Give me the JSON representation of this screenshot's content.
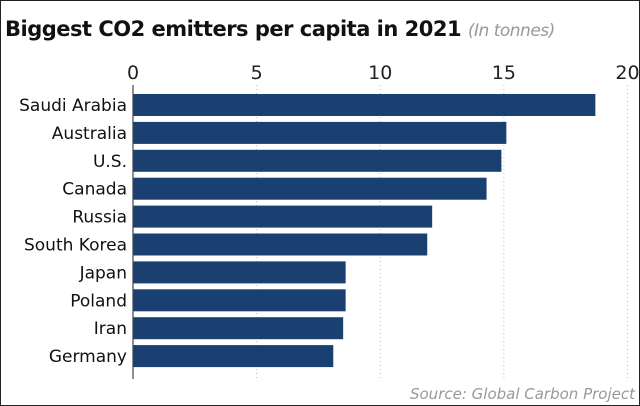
{
  "chart_data": {
    "type": "bar",
    "orientation": "horizontal",
    "title": "Biggest CO2 emitters per capita in 2021",
    "subtitle": "(In tonnes)",
    "categories": [
      "Saudi Arabia",
      "Australia",
      "U.S.",
      "Canada",
      "Russia",
      "South Korea",
      "Japan",
      "Poland",
      "Iran",
      "Germany"
    ],
    "values": [
      18.7,
      15.1,
      14.9,
      14.3,
      12.1,
      11.9,
      8.6,
      8.6,
      8.5,
      8.1
    ],
    "xlim": [
      0,
      20
    ],
    "xticks": [
      "0",
      "5",
      "10",
      "15",
      "20"
    ],
    "xtick_values": [
      0,
      5,
      10,
      15,
      20
    ],
    "axis_position": "top",
    "grid": "vertical dotted",
    "bar_color": "#1a4072",
    "source": "Source: Global Carbon Project"
  }
}
